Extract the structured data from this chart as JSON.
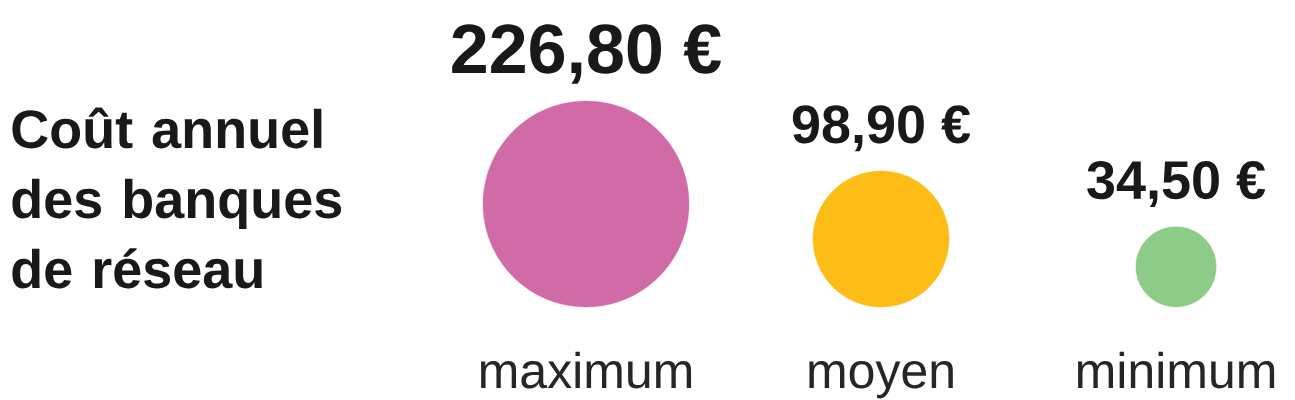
{
  "chart_data": {
    "type": "other",
    "title": "Coût annuel des banques de réseau",
    "categories": [
      "maximum",
      "moyen",
      "minimum"
    ],
    "values": [
      226.8,
      98.9,
      34.5
    ],
    "value_labels": [
      "226,80 €",
      "98,90 €",
      "34,50 €"
    ],
    "colors": [
      "#d06ba8",
      "#fdbd16",
      "#8dcb88"
    ]
  }
}
